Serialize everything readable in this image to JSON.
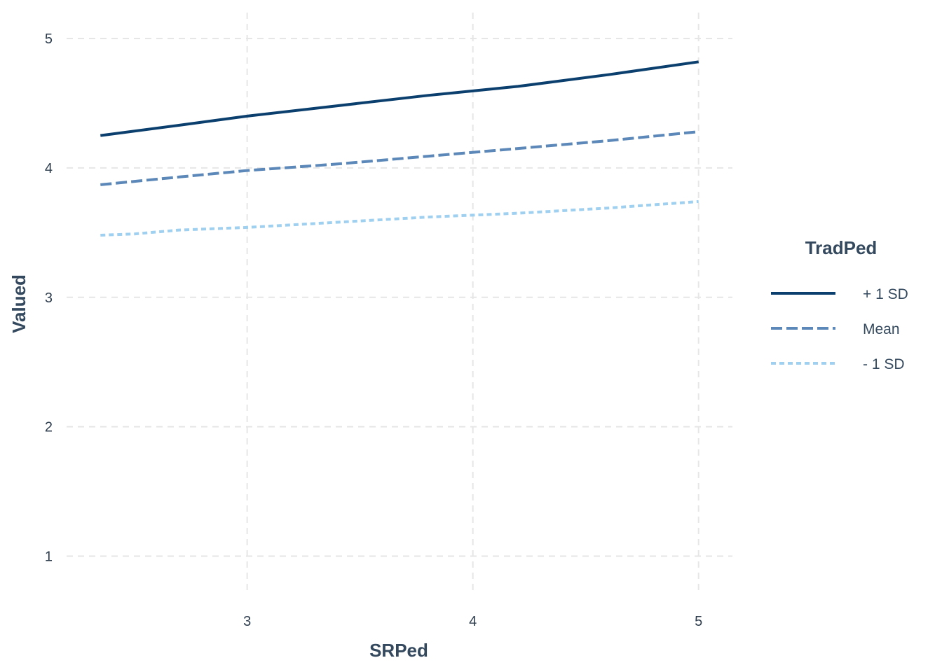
{
  "chart_data": {
    "type": "line",
    "xlabel": "SRPed",
    "ylabel": "Valued",
    "xlim": [
      2.2,
      5.15
    ],
    "ylim": [
      0.7,
      5.2
    ],
    "x_ticks": [
      3,
      4,
      5
    ],
    "y_ticks": [
      1,
      2,
      3,
      4,
      5
    ],
    "grid": true,
    "legend": {
      "title": "TradPed",
      "position": "right"
    },
    "series": [
      {
        "name": "+ 1 SD",
        "color": "#0b3f6e",
        "style": "solid",
        "x": [
          2.35,
          2.7,
          3.0,
          3.4,
          3.8,
          4.2,
          4.6,
          5.0
        ],
        "y": [
          4.25,
          4.33,
          4.4,
          4.48,
          4.56,
          4.63,
          4.72,
          4.82
        ]
      },
      {
        "name": "Mean",
        "color": "#5b88b8",
        "style": "dashed",
        "x": [
          2.35,
          2.7,
          3.0,
          3.4,
          3.8,
          4.2,
          4.6,
          5.0
        ],
        "y": [
          3.87,
          3.93,
          3.98,
          4.03,
          4.09,
          4.15,
          4.21,
          4.28
        ]
      },
      {
        "name": "- 1 SD",
        "color": "#9fd0f0",
        "style": "dotted",
        "x": [
          2.35,
          2.5,
          2.7,
          3.0,
          3.4,
          3.8,
          4.2,
          4.6,
          5.0
        ],
        "y": [
          3.48,
          3.49,
          3.52,
          3.54,
          3.58,
          3.62,
          3.65,
          3.69,
          3.74
        ]
      }
    ]
  }
}
